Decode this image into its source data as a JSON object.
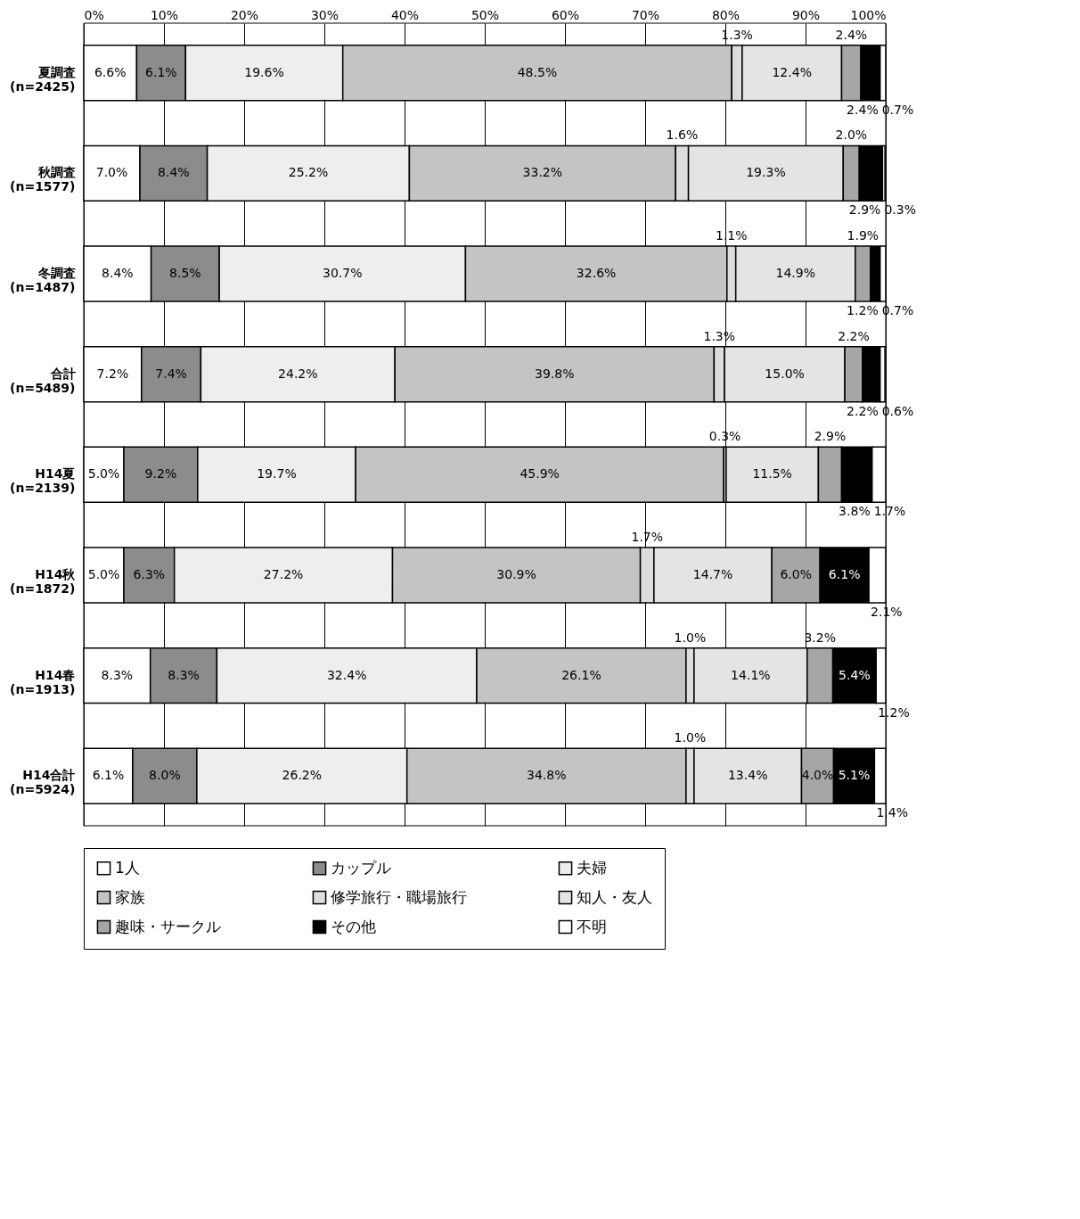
{
  "chart_data": {
    "type": "bar",
    "orientation": "horizontal",
    "stacked": true,
    "categories": [
      "夏調査\n(n=2425)",
      "秋調査\n(n=1577)",
      "冬調査\n(n=1487)",
      "合計\n(n=5489)",
      "H14夏\n(n=2139)",
      "H14秋\n(n=1872)",
      "H14春\n(n=1913)",
      "H14合計\n(n=5924)"
    ],
    "xlim": [
      0,
      100
    ],
    "xticks": [
      {
        "value": 0,
        "label": "0%"
      },
      {
        "value": 10,
        "label": "10%"
      },
      {
        "value": 20,
        "label": "20%"
      },
      {
        "value": 30,
        "label": "30%"
      },
      {
        "value": 40,
        "label": "40%"
      },
      {
        "value": 50,
        "label": "50%"
      },
      {
        "value": 60,
        "label": "60%"
      },
      {
        "value": 70,
        "label": "70%"
      },
      {
        "value": 80,
        "label": "80%"
      },
      {
        "value": 90,
        "label": "90%"
      },
      {
        "value": 100,
        "label": "100%"
      }
    ],
    "grid": "x",
    "legend": "bottom",
    "series": [
      {
        "name": "1人",
        "color": "#ffffff",
        "values": [
          6.6,
          7.0,
          8.4,
          7.2,
          5.0,
          5.0,
          8.3,
          6.1
        ],
        "value_labels": [
          "6.6%",
          "7.0%",
          "8.4%",
          "7.2%",
          "5.0%",
          "5.0%",
          "8.3%",
          "6.1%"
        ]
      },
      {
        "name": "カップル",
        "color": "#8c8c8c",
        "values": [
          6.1,
          8.4,
          8.5,
          7.4,
          9.2,
          6.3,
          8.3,
          8.0
        ],
        "value_labels": [
          "6.1%",
          "8.4%",
          "8.5%",
          "7.4%",
          "9.2%",
          "6.3%",
          "8.3%",
          "8.0%"
        ]
      },
      {
        "name": "夫婦",
        "color": "#eeeeee",
        "values": [
          19.6,
          25.2,
          30.7,
          24.2,
          19.7,
          27.2,
          32.4,
          26.2
        ],
        "value_labels": [
          "19.6%",
          "25.2%",
          "30.7%",
          "24.2%",
          "19.7%",
          "27.2%",
          "32.4%",
          "26.2%"
        ]
      },
      {
        "name": "家族",
        "color": "#c4c4c4",
        "values": [
          48.5,
          33.2,
          32.6,
          39.8,
          45.9,
          30.9,
          26.1,
          34.8
        ],
        "value_labels": [
          "48.5%",
          "33.2%",
          "32.6%",
          "39.8%",
          "45.9%",
          "30.9%",
          "26.1%",
          "34.8%"
        ]
      },
      {
        "name": "修学旅行・職場旅行",
        "color": "#dddddd",
        "values": [
          1.3,
          1.6,
          1.1,
          1.3,
          0.3,
          1.7,
          1.0,
          1.0
        ],
        "value_labels": [
          "1.3%",
          "1.6%",
          "1.1%",
          "1.3%",
          "0.3%",
          "1.7%",
          "1.0%",
          "1.0%"
        ]
      },
      {
        "name": "知人・友人",
        "color": "#e4e4e4",
        "values": [
          12.4,
          19.3,
          14.9,
          15.0,
          11.5,
          14.7,
          14.1,
          13.4
        ],
        "value_labels": [
          "12.4%",
          "19.3%",
          "14.9%",
          "15.0%",
          "11.5%",
          "14.7%",
          "14.1%",
          "13.4%"
        ]
      },
      {
        "name": "趣味・サークル",
        "color": "#a6a6a6",
        "values": [
          2.4,
          2.0,
          1.9,
          2.2,
          2.9,
          6.0,
          3.2,
          4.0
        ],
        "value_labels": [
          "2.4%",
          "2.0%",
          "1.9%",
          "2.2%",
          "2.9%",
          "6.0%",
          "3.2%",
          "4.0%"
        ]
      },
      {
        "name": "その他",
        "color": "#000000",
        "values": [
          2.4,
          2.9,
          1.2,
          2.2,
          3.8,
          6.1,
          5.4,
          5.1
        ],
        "value_labels": [
          "2.4%",
          "2.9%",
          "1.2%",
          "2.2%",
          "3.8%",
          "6.1%",
          "5.4%",
          "5.1%"
        ]
      },
      {
        "name": "不明",
        "color": "#ffffff",
        "values": [
          0.7,
          0.3,
          0.7,
          0.6,
          1.7,
          2.1,
          1.2,
          1.4
        ],
        "value_labels": [
          "0.7%",
          "0.3%",
          "0.7%",
          "0.6%",
          "1.7%",
          "2.1%",
          "1.2%",
          "1.4%"
        ]
      }
    ]
  }
}
